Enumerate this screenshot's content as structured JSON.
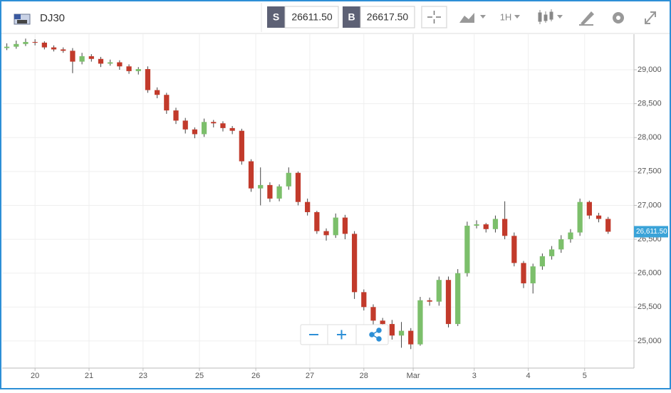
{
  "toolbar": {
    "symbol": "DJ30",
    "sell_tag": "S",
    "sell_price": "26611.50",
    "buy_tag": "B",
    "buy_price": "26617.50",
    "interval": "1H"
  },
  "chart_data": {
    "type": "candlestick",
    "up_color": "#7cbf6b",
    "down_color": "#c23a2b",
    "grid": true,
    "xlim": [
      -14,
      255
    ],
    "xticks": [
      {
        "value": 0,
        "label": "20"
      },
      {
        "value": 23,
        "label": "21"
      },
      {
        "value": 46,
        "label": "23"
      },
      {
        "value": 70,
        "label": "25"
      },
      {
        "value": 94,
        "label": "26"
      },
      {
        "value": 117,
        "label": "27"
      },
      {
        "value": 140,
        "label": "28"
      },
      {
        "value": 161,
        "label": "Mar"
      },
      {
        "value": 187,
        "label": "3"
      },
      {
        "value": 210,
        "label": "4"
      },
      {
        "value": 234,
        "label": "5"
      }
    ],
    "ylim": [
      24600,
      29525
    ],
    "yticks": [
      {
        "value": 25000,
        "label": "25,000"
      },
      {
        "value": 25500,
        "label": "25,500"
      },
      {
        "value": 26000,
        "label": "26,000"
      },
      {
        "value": 26500,
        "label": "26,500"
      },
      {
        "value": 27000,
        "label": "27,000"
      },
      {
        "value": 27500,
        "label": "27,500"
      },
      {
        "value": 28000,
        "label": "28,000"
      },
      {
        "value": 28500,
        "label": "28,500"
      },
      {
        "value": 29000,
        "label": "29,000"
      }
    ],
    "last_price": {
      "value": 26611.5,
      "label": "26,611.50"
    },
    "x": [
      -12,
      -8,
      -4,
      0,
      4,
      8,
      12,
      16,
      20,
      24,
      28,
      32,
      36,
      40,
      44,
      48,
      52,
      56,
      60,
      64,
      68,
      72,
      76,
      80,
      84,
      88,
      92,
      96,
      100,
      104,
      108,
      112,
      116,
      120,
      124,
      128,
      132,
      136,
      140,
      144,
      148,
      152,
      156,
      160,
      164,
      168,
      172,
      176,
      180,
      184,
      188,
      192,
      196,
      200,
      204,
      208,
      212,
      216,
      220,
      224,
      228,
      232,
      236,
      240,
      244
    ],
    "open": [
      29320,
      29340,
      29380,
      29410,
      29400,
      29330,
      29300,
      29280,
      29120,
      29200,
      29160,
      29090,
      29110,
      29050,
      28980,
      29010,
      28700,
      28630,
      28400,
      28250,
      28120,
      28050,
      28230,
      28210,
      28140,
      28100,
      27650,
      27250,
      27300,
      27100,
      27280,
      27480,
      27050,
      26900,
      26620,
      26560,
      26820,
      26580,
      25720,
      25500,
      25300,
      25250,
      25080,
      25150,
      24950,
      25600,
      25580,
      25900,
      25250,
      26000,
      26700,
      26720,
      26650,
      26800,
      26550,
      26150,
      25850,
      26100,
      26250,
      26350,
      26500,
      26600,
      27050,
      26850,
      26800
    ],
    "high": [
      29390,
      29430,
      29460,
      29450,
      29420,
      29360,
      29330,
      29320,
      29250,
      29230,
      29190,
      29150,
      29140,
      29080,
      29040,
      29050,
      28740,
      28660,
      28440,
      28290,
      28150,
      28280,
      28260,
      28240,
      28170,
      28130,
      27680,
      27560,
      27340,
      27310,
      27560,
      27500,
      27100,
      26920,
      26660,
      26880,
      26860,
      26620,
      25760,
      25540,
      25340,
      25310,
      25280,
      25190,
      25650,
      25640,
      25950,
      25950,
      26060,
      26760,
      26780,
      26740,
      26850,
      27060,
      26600,
      26180,
      26140,
      26290,
      26400,
      26560,
      26650,
      27100,
      27070,
      26890,
      26830
    ],
    "low": [
      29290,
      29310,
      29350,
      29360,
      29300,
      29270,
      29250,
      28950,
      29080,
      29120,
      29040,
      29060,
      29000,
      28940,
      28930,
      28660,
      28580,
      28350,
      28200,
      28060,
      27990,
      28010,
      28150,
      28090,
      28050,
      27600,
      27200,
      27000,
      27050,
      27060,
      27230,
      27000,
      26850,
      26580,
      26480,
      26520,
      26500,
      25620,
      25450,
      25240,
      25200,
      25020,
      24900,
      24880,
      24930,
      25520,
      25520,
      25200,
      25220,
      25950,
      26660,
      26600,
      26600,
      26500,
      26100,
      25780,
      25700,
      26050,
      26200,
      26300,
      26450,
      26550,
      26800,
      26750,
      26580
    ],
    "close": [
      29340,
      29380,
      29410,
      29400,
      29330,
      29300,
      29280,
      29120,
      29200,
      29160,
      29090,
      29110,
      29050,
      28980,
      29010,
      28700,
      28630,
      28400,
      28250,
      28120,
      28050,
      28230,
      28210,
      28140,
      28100,
      27650,
      27250,
      27300,
      27100,
      27280,
      27480,
      27050,
      26900,
      26620,
      26560,
      26820,
      26580,
      25720,
      25500,
      25300,
      25250,
      25080,
      25150,
      24950,
      25600,
      25580,
      25900,
      25250,
      26000,
      26700,
      26720,
      26650,
      26800,
      26550,
      26150,
      25850,
      26100,
      26250,
      26350,
      26500,
      26600,
      27050,
      26850,
      26800,
      26611.5
    ]
  }
}
